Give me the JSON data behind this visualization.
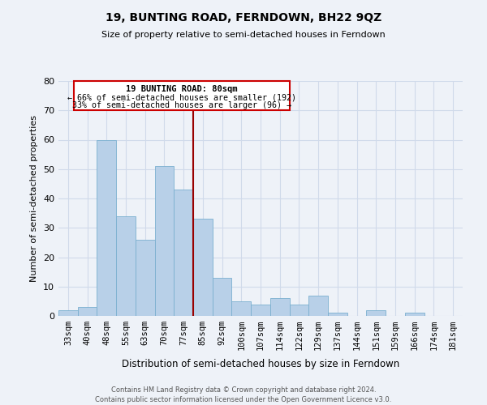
{
  "title": "19, BUNTING ROAD, FERNDOWN, BH22 9QZ",
  "subtitle": "Size of property relative to semi-detached houses in Ferndown",
  "xlabel": "Distribution of semi-detached houses by size in Ferndown",
  "ylabel": "Number of semi-detached properties",
  "footer_line1": "Contains HM Land Registry data © Crown copyright and database right 2024.",
  "footer_line2": "Contains public sector information licensed under the Open Government Licence v3.0.",
  "categories": [
    "33sqm",
    "40sqm",
    "48sqm",
    "55sqm",
    "63sqm",
    "70sqm",
    "77sqm",
    "85sqm",
    "92sqm",
    "100sqm",
    "107sqm",
    "114sqm",
    "122sqm",
    "129sqm",
    "137sqm",
    "144sqm",
    "151sqm",
    "159sqm",
    "166sqm",
    "174sqm",
    "181sqm"
  ],
  "values": [
    2,
    3,
    60,
    34,
    26,
    51,
    43,
    33,
    13,
    5,
    4,
    6,
    4,
    7,
    1,
    0,
    2,
    0,
    1,
    0,
    0
  ],
  "bar_color": "#b8d0e8",
  "bar_edge_color": "#7aafcf",
  "grid_color": "#d0daea",
  "property_line_x": 7.5,
  "property_line_color": "#990000",
  "annotation_text_line1": "19 BUNTING ROAD: 80sqm",
  "annotation_text_line2": "← 66% of semi-detached houses are smaller (192)",
  "annotation_text_line3": "33% of semi-detached houses are larger (96) →",
  "annotation_box_color": "#cc0000",
  "ylim": [
    0,
    80
  ],
  "yticks": [
    0,
    10,
    20,
    30,
    40,
    50,
    60,
    70,
    80
  ],
  "background_color": "#eef2f8",
  "title_fontsize": 10,
  "subtitle_fontsize": 8
}
